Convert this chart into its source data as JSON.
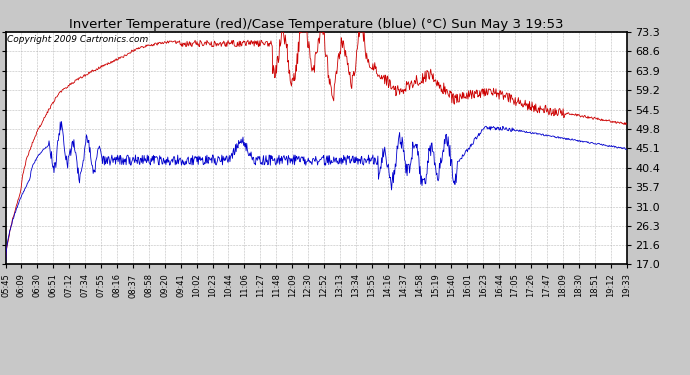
{
  "title": "Inverter Temperature (red)/Case Temperature (blue) (°C) Sun May 3 19:53",
  "copyright": "Copyright 2009 Cartronics.com",
  "yticks": [
    17.0,
    21.6,
    26.3,
    31.0,
    35.7,
    40.4,
    45.1,
    49.8,
    54.5,
    59.2,
    63.9,
    68.6,
    73.3
  ],
  "ymin": 17.0,
  "ymax": 73.3,
  "bg_color": "#c8c8c8",
  "plot_bg_color": "#ffffff",
  "red_color": "#cc0000",
  "blue_color": "#0000cc",
  "grid_color": "#aaaaaa",
  "xtick_labels": [
    "05:45",
    "06:09",
    "06:30",
    "06:51",
    "07:12",
    "07:34",
    "07:55",
    "08:16",
    "08:37",
    "08:58",
    "09:20",
    "09:41",
    "10:02",
    "10:23",
    "10:44",
    "11:06",
    "11:27",
    "11:48",
    "12:09",
    "12:30",
    "12:52",
    "13:13",
    "13:34",
    "13:55",
    "14:16",
    "14:37",
    "14:58",
    "15:19",
    "15:40",
    "16:01",
    "16:23",
    "16:44",
    "17:05",
    "17:26",
    "17:47",
    "18:09",
    "18:30",
    "18:51",
    "19:12",
    "19:33"
  ],
  "n_points": 1000,
  "title_fontsize": 9.5,
  "copyright_fontsize": 6.5,
  "ytick_fontsize": 8,
  "xtick_fontsize": 6
}
